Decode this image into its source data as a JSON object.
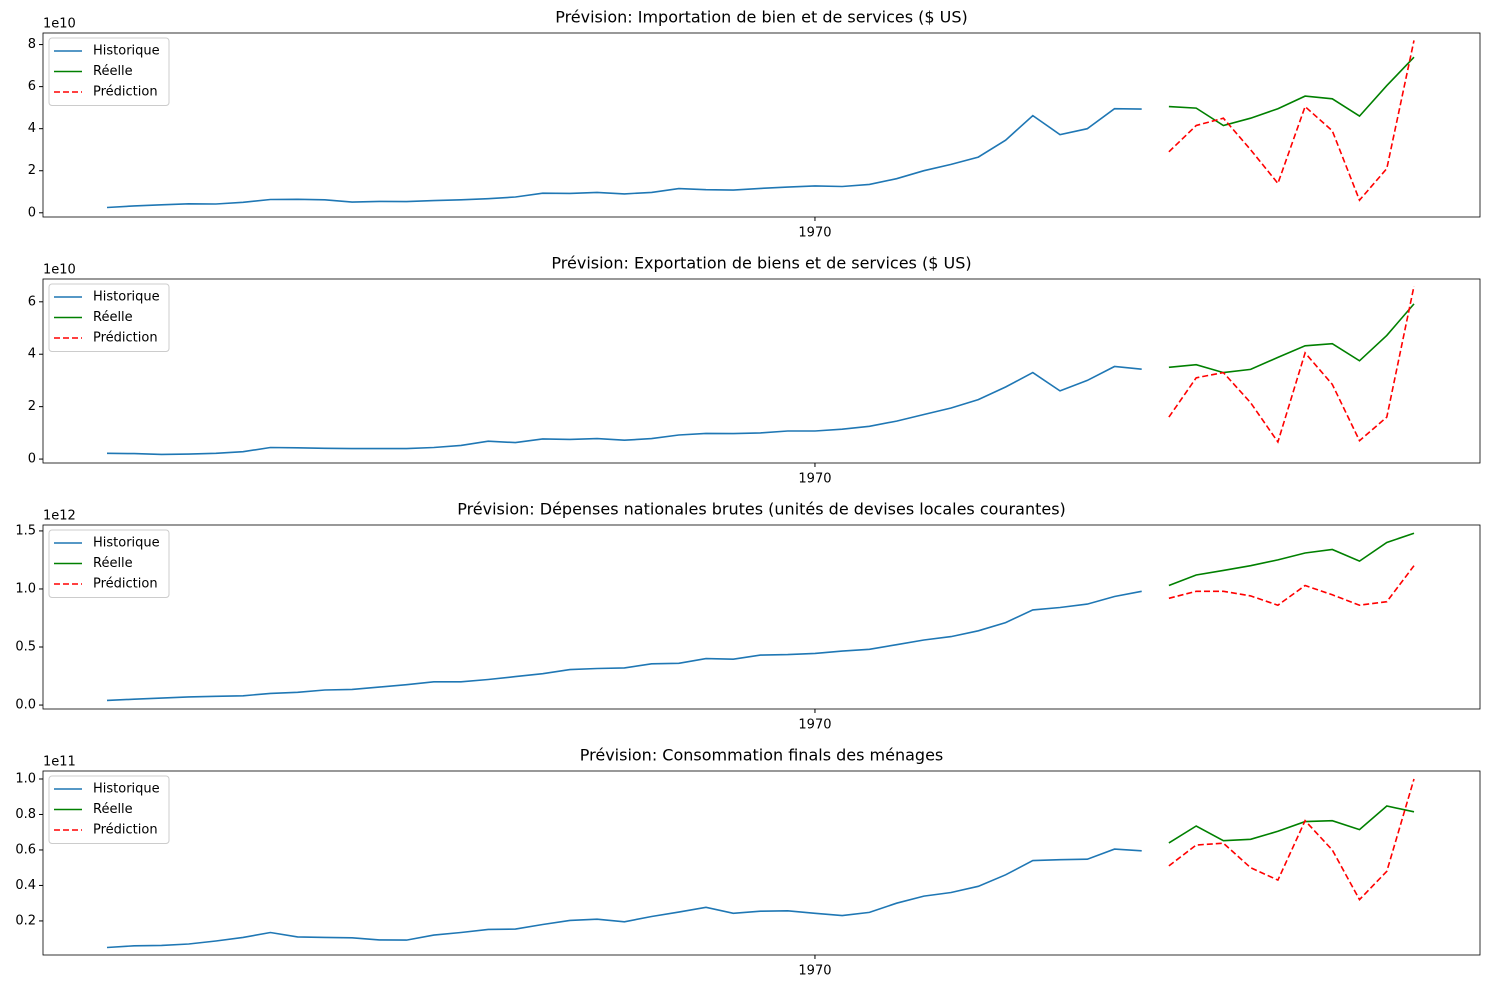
{
  "chart_data": [
    {
      "type": "line",
      "title": "Prévision: Importation de bien et de services ($ US)",
      "y_offset_label": "1e10",
      "legend": "upper left",
      "categories": [
        null,
        null,
        null,
        null,
        null,
        null,
        null,
        null,
        null,
        null,
        null,
        null,
        null,
        null,
        null,
        null,
        null,
        null,
        null,
        null,
        null,
        null,
        null,
        null,
        null,
        null,
        "1970",
        null,
        null,
        null,
        null,
        null,
        null,
        null,
        null,
        null,
        null,
        null,
        null,
        null,
        null,
        null,
        null,
        null,
        null,
        null,
        null,
        null,
        null
      ],
      "ylim": [
        -0.2,
        8.55
      ],
      "yticks": [
        0,
        2,
        4,
        6,
        8
      ],
      "series": [
        {
          "name": "Historique",
          "color": "#1f77b4",
          "linestyle": "solid",
          "values": [
            0.25,
            0.33,
            0.38,
            0.43,
            0.42,
            0.5,
            0.63,
            0.64,
            0.62,
            0.51,
            0.54,
            0.53,
            0.58,
            0.62,
            0.67,
            0.75,
            0.93,
            0.92,
            0.97,
            0.9,
            0.97,
            1.15,
            1.1,
            1.08,
            1.16,
            1.22,
            1.28,
            1.25,
            1.35,
            1.62,
            2.0,
            2.3,
            2.65,
            3.45,
            4.62,
            3.72,
            4.0,
            4.95,
            4.93,
            null,
            null,
            null,
            null,
            null,
            null,
            null,
            null,
            null,
            null
          ]
        },
        {
          "name": "Réelle",
          "color": "#008000",
          "linestyle": "solid",
          "values": [
            null,
            null,
            null,
            null,
            null,
            null,
            null,
            null,
            null,
            null,
            null,
            null,
            null,
            null,
            null,
            null,
            null,
            null,
            null,
            null,
            null,
            null,
            null,
            null,
            null,
            null,
            null,
            null,
            null,
            null,
            null,
            null,
            null,
            null,
            null,
            null,
            null,
            null,
            null,
            5.05,
            4.98,
            4.15,
            4.5,
            4.95,
            5.55,
            5.42,
            4.6,
            6.05,
            7.4
          ]
        },
        {
          "name": "Prédiction",
          "color": "#ff0000",
          "linestyle": "dashed",
          "values": [
            null,
            null,
            null,
            null,
            null,
            null,
            null,
            null,
            null,
            null,
            null,
            null,
            null,
            null,
            null,
            null,
            null,
            null,
            null,
            null,
            null,
            null,
            null,
            null,
            null,
            null,
            null,
            null,
            null,
            null,
            null,
            null,
            null,
            null,
            null,
            null,
            null,
            null,
            null,
            2.9,
            4.15,
            4.5,
            3.0,
            1.4,
            5.05,
            3.9,
            0.6,
            2.1,
            8.2
          ]
        }
      ]
    },
    {
      "type": "line",
      "title": "Prévision: Exportation de biens et de services ($ US)",
      "y_offset_label": "1e10",
      "legend": "upper left",
      "categories": [
        null,
        null,
        null,
        null,
        null,
        null,
        null,
        null,
        null,
        null,
        null,
        null,
        null,
        null,
        null,
        null,
        null,
        null,
        null,
        null,
        null,
        null,
        null,
        null,
        null,
        null,
        "1970",
        null,
        null,
        null,
        null,
        null,
        null,
        null,
        null,
        null,
        null,
        null,
        null,
        null,
        null,
        null,
        null,
        null,
        null,
        null,
        null,
        null,
        null
      ],
      "ylim": [
        -0.15,
        6.87
      ],
      "yticks": [
        0,
        2,
        4,
        6
      ],
      "series": [
        {
          "name": "Historique",
          "color": "#1f77b4",
          "linestyle": "solid",
          "values": [
            0.22,
            0.21,
            0.18,
            0.19,
            0.22,
            0.28,
            0.44,
            0.43,
            0.41,
            0.4,
            0.4,
            0.4,
            0.44,
            0.52,
            0.68,
            0.63,
            0.77,
            0.75,
            0.78,
            0.72,
            0.78,
            0.92,
            0.98,
            0.97,
            1.0,
            1.07,
            1.07,
            1.14,
            1.25,
            1.45,
            1.7,
            1.95,
            2.27,
            2.75,
            3.3,
            2.6,
            3.0,
            3.53,
            3.43,
            null,
            null,
            null,
            null,
            null,
            null,
            null,
            null,
            null,
            null
          ]
        },
        {
          "name": "Réelle",
          "color": "#008000",
          "linestyle": "solid",
          "values": [
            null,
            null,
            null,
            null,
            null,
            null,
            null,
            null,
            null,
            null,
            null,
            null,
            null,
            null,
            null,
            null,
            null,
            null,
            null,
            null,
            null,
            null,
            null,
            null,
            null,
            null,
            null,
            null,
            null,
            null,
            null,
            null,
            null,
            null,
            null,
            null,
            null,
            null,
            null,
            3.5,
            3.6,
            3.3,
            3.42,
            3.88,
            4.32,
            4.4,
            3.75,
            4.72,
            5.92
          ]
        },
        {
          "name": "Prédiction",
          "color": "#ff0000",
          "linestyle": "dashed",
          "values": [
            null,
            null,
            null,
            null,
            null,
            null,
            null,
            null,
            null,
            null,
            null,
            null,
            null,
            null,
            null,
            null,
            null,
            null,
            null,
            null,
            null,
            null,
            null,
            null,
            null,
            null,
            null,
            null,
            null,
            null,
            null,
            null,
            null,
            null,
            null,
            null,
            null,
            null,
            null,
            1.6,
            3.1,
            3.3,
            2.15,
            0.65,
            4.05,
            2.85,
            0.7,
            1.6,
            6.6
          ]
        }
      ]
    },
    {
      "type": "line",
      "title": "Prévision: Dépenses nationales brutes (unités de devises locales courantes)",
      "y_offset_label": "1e12",
      "legend": "upper left",
      "categories": [
        null,
        null,
        null,
        null,
        null,
        null,
        null,
        null,
        null,
        null,
        null,
        null,
        null,
        null,
        null,
        null,
        null,
        null,
        null,
        null,
        null,
        null,
        null,
        null,
        null,
        null,
        "1970",
        null,
        null,
        null,
        null,
        null,
        null,
        null,
        null,
        null,
        null,
        null,
        null,
        null,
        null,
        null,
        null,
        null,
        null,
        null,
        null,
        null,
        null
      ],
      "ylim": [
        -0.034,
        1.551
      ],
      "yticks": [
        {
          "value": 0,
          "label": "0.0"
        },
        0.5,
        {
          "value": 1,
          "label": "1.0"
        },
        1.5
      ],
      "series": [
        {
          "name": "Historique",
          "color": "#1f77b4",
          "linestyle": "solid",
          "values": [
            0.04,
            0.05,
            0.06,
            0.07,
            0.075,
            0.08,
            0.1,
            0.11,
            0.13,
            0.135,
            0.155,
            0.175,
            0.2,
            0.2,
            0.22,
            0.245,
            0.27,
            0.305,
            0.315,
            0.32,
            0.355,
            0.36,
            0.4,
            0.395,
            0.43,
            0.435,
            0.445,
            0.465,
            0.48,
            0.52,
            0.56,
            0.59,
            0.64,
            0.71,
            0.82,
            0.84,
            0.87,
            0.935,
            0.98,
            null,
            null,
            null,
            null,
            null,
            null,
            null,
            null,
            null,
            null
          ]
        },
        {
          "name": "Réelle",
          "color": "#008000",
          "linestyle": "solid",
          "values": [
            null,
            null,
            null,
            null,
            null,
            null,
            null,
            null,
            null,
            null,
            null,
            null,
            null,
            null,
            null,
            null,
            null,
            null,
            null,
            null,
            null,
            null,
            null,
            null,
            null,
            null,
            null,
            null,
            null,
            null,
            null,
            null,
            null,
            null,
            null,
            null,
            null,
            null,
            null,
            1.03,
            1.12,
            1.16,
            1.2,
            1.25,
            1.31,
            1.34,
            1.24,
            1.4,
            1.48
          ]
        },
        {
          "name": "Prédiction",
          "color": "#ff0000",
          "linestyle": "dashed",
          "values": [
            null,
            null,
            null,
            null,
            null,
            null,
            null,
            null,
            null,
            null,
            null,
            null,
            null,
            null,
            null,
            null,
            null,
            null,
            null,
            null,
            null,
            null,
            null,
            null,
            null,
            null,
            null,
            null,
            null,
            null,
            null,
            null,
            null,
            null,
            null,
            null,
            null,
            null,
            null,
            0.92,
            0.98,
            0.98,
            0.94,
            0.86,
            1.03,
            0.95,
            0.86,
            0.89,
            1.2
          ]
        }
      ]
    },
    {
      "type": "line",
      "title": "Prévision: Consommation finals des ménages",
      "y_offset_label": "1e11",
      "legend": "upper left",
      "categories": [
        null,
        null,
        null,
        null,
        null,
        null,
        null,
        null,
        null,
        null,
        null,
        null,
        null,
        null,
        null,
        null,
        null,
        null,
        null,
        null,
        null,
        null,
        null,
        null,
        null,
        null,
        "1970",
        null,
        null,
        null,
        null,
        null,
        null,
        null,
        null,
        null,
        null,
        null,
        null,
        null,
        null,
        null,
        null,
        null,
        null,
        null,
        null,
        null,
        null
      ],
      "ylim": [
        0.008,
        1.045
      ],
      "yticks": [
        0.2,
        0.4,
        0.6,
        0.8,
        {
          "value": 1,
          "label": "1.0"
        }
      ],
      "series": [
        {
          "name": "Historique",
          "color": "#1f77b4",
          "linestyle": "solid",
          "values": [
            0.05,
            0.06,
            0.062,
            0.07,
            0.087,
            0.107,
            0.135,
            0.11,
            0.107,
            0.105,
            0.093,
            0.092,
            0.12,
            0.135,
            0.152,
            0.154,
            0.18,
            0.203,
            0.21,
            0.195,
            0.225,
            0.25,
            0.277,
            0.243,
            0.255,
            0.257,
            0.243,
            0.23,
            0.248,
            0.3,
            0.34,
            0.36,
            0.395,
            0.46,
            0.54,
            0.545,
            0.548,
            0.605,
            0.595,
            null,
            null,
            null,
            null,
            null,
            null,
            null,
            null,
            null,
            null
          ]
        },
        {
          "name": "Réelle",
          "color": "#008000",
          "linestyle": "solid",
          "values": [
            null,
            null,
            null,
            null,
            null,
            null,
            null,
            null,
            null,
            null,
            null,
            null,
            null,
            null,
            null,
            null,
            null,
            null,
            null,
            null,
            null,
            null,
            null,
            null,
            null,
            null,
            null,
            null,
            null,
            null,
            null,
            null,
            null,
            null,
            null,
            null,
            null,
            null,
            null,
            0.64,
            0.735,
            0.652,
            0.66,
            0.705,
            0.76,
            0.765,
            0.715,
            0.848,
            0.815
          ]
        },
        {
          "name": "Prédiction",
          "color": "#ff0000",
          "linestyle": "dashed",
          "values": [
            null,
            null,
            null,
            null,
            null,
            null,
            null,
            null,
            null,
            null,
            null,
            null,
            null,
            null,
            null,
            null,
            null,
            null,
            null,
            null,
            null,
            null,
            null,
            null,
            null,
            null,
            null,
            null,
            null,
            null,
            null,
            null,
            null,
            null,
            null,
            null,
            null,
            null,
            null,
            0.51,
            0.628,
            0.638,
            0.5,
            0.43,
            0.765,
            0.6,
            0.32,
            0.48,
            1.0
          ]
        }
      ]
    }
  ]
}
